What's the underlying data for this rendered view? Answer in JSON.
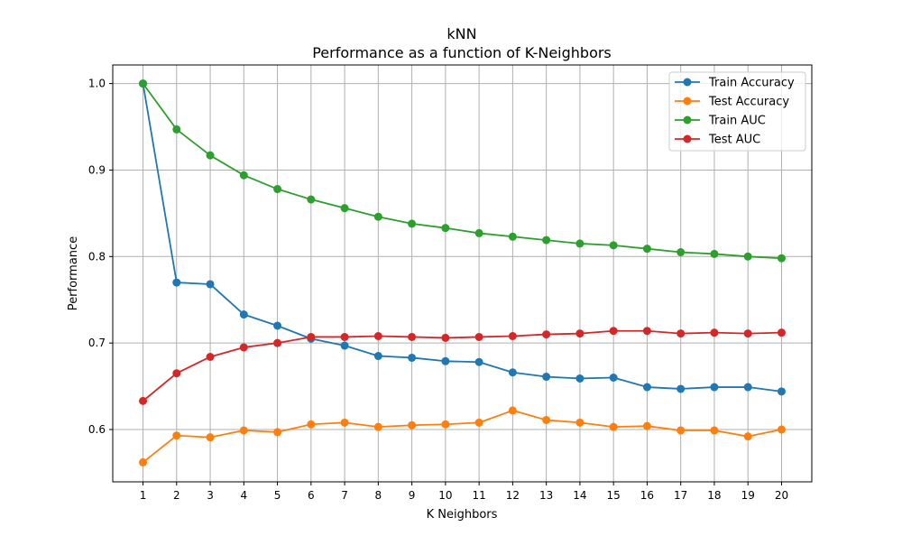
{
  "chart_data": {
    "type": "line",
    "title": "kNN",
    "subtitle": "Performance as a function of K-Neighbors",
    "xlabel": "K Neighbors",
    "ylabel": "Performance",
    "x": [
      1,
      2,
      3,
      4,
      5,
      6,
      7,
      8,
      9,
      10,
      11,
      12,
      13,
      14,
      15,
      16,
      17,
      18,
      19,
      20
    ],
    "xlim": [
      0.1,
      20.9
    ],
    "ylim": [
      0.5395,
      1.0215
    ],
    "yticks": [
      0.6,
      0.7,
      0.8,
      0.9,
      1.0
    ],
    "ytick_labels": [
      "0.6",
      "0.7",
      "0.8",
      "0.9",
      "1.0"
    ],
    "grid": true,
    "legend_position": "top-right",
    "series": [
      {
        "name": "Train Accuracy",
        "color": "#1f77b4",
        "values": [
          1.0,
          0.77,
          0.768,
          0.733,
          0.72,
          0.705,
          0.697,
          0.685,
          0.683,
          0.679,
          0.678,
          0.666,
          0.661,
          0.659,
          0.66,
          0.649,
          0.647,
          0.649,
          0.649,
          0.644
        ]
      },
      {
        "name": "Test Accuracy",
        "color": "#ff7f0e",
        "values": [
          0.562,
          0.593,
          0.591,
          0.599,
          0.597,
          0.606,
          0.608,
          0.603,
          0.605,
          0.606,
          0.608,
          0.622,
          0.611,
          0.608,
          0.603,
          0.604,
          0.599,
          0.599,
          0.592,
          0.6
        ]
      },
      {
        "name": "Train AUC",
        "color": "#2ca02c",
        "values": [
          1.0,
          0.947,
          0.917,
          0.894,
          0.878,
          0.866,
          0.856,
          0.846,
          0.838,
          0.833,
          0.827,
          0.823,
          0.819,
          0.815,
          0.813,
          0.809,
          0.805,
          0.803,
          0.8,
          0.798
        ]
      },
      {
        "name": "Test AUC",
        "color": "#d62728",
        "values": [
          0.633,
          0.665,
          0.684,
          0.695,
          0.7,
          0.707,
          0.707,
          0.708,
          0.707,
          0.706,
          0.707,
          0.708,
          0.71,
          0.711,
          0.714,
          0.714,
          0.711,
          0.712,
          0.711,
          0.712
        ]
      }
    ]
  }
}
